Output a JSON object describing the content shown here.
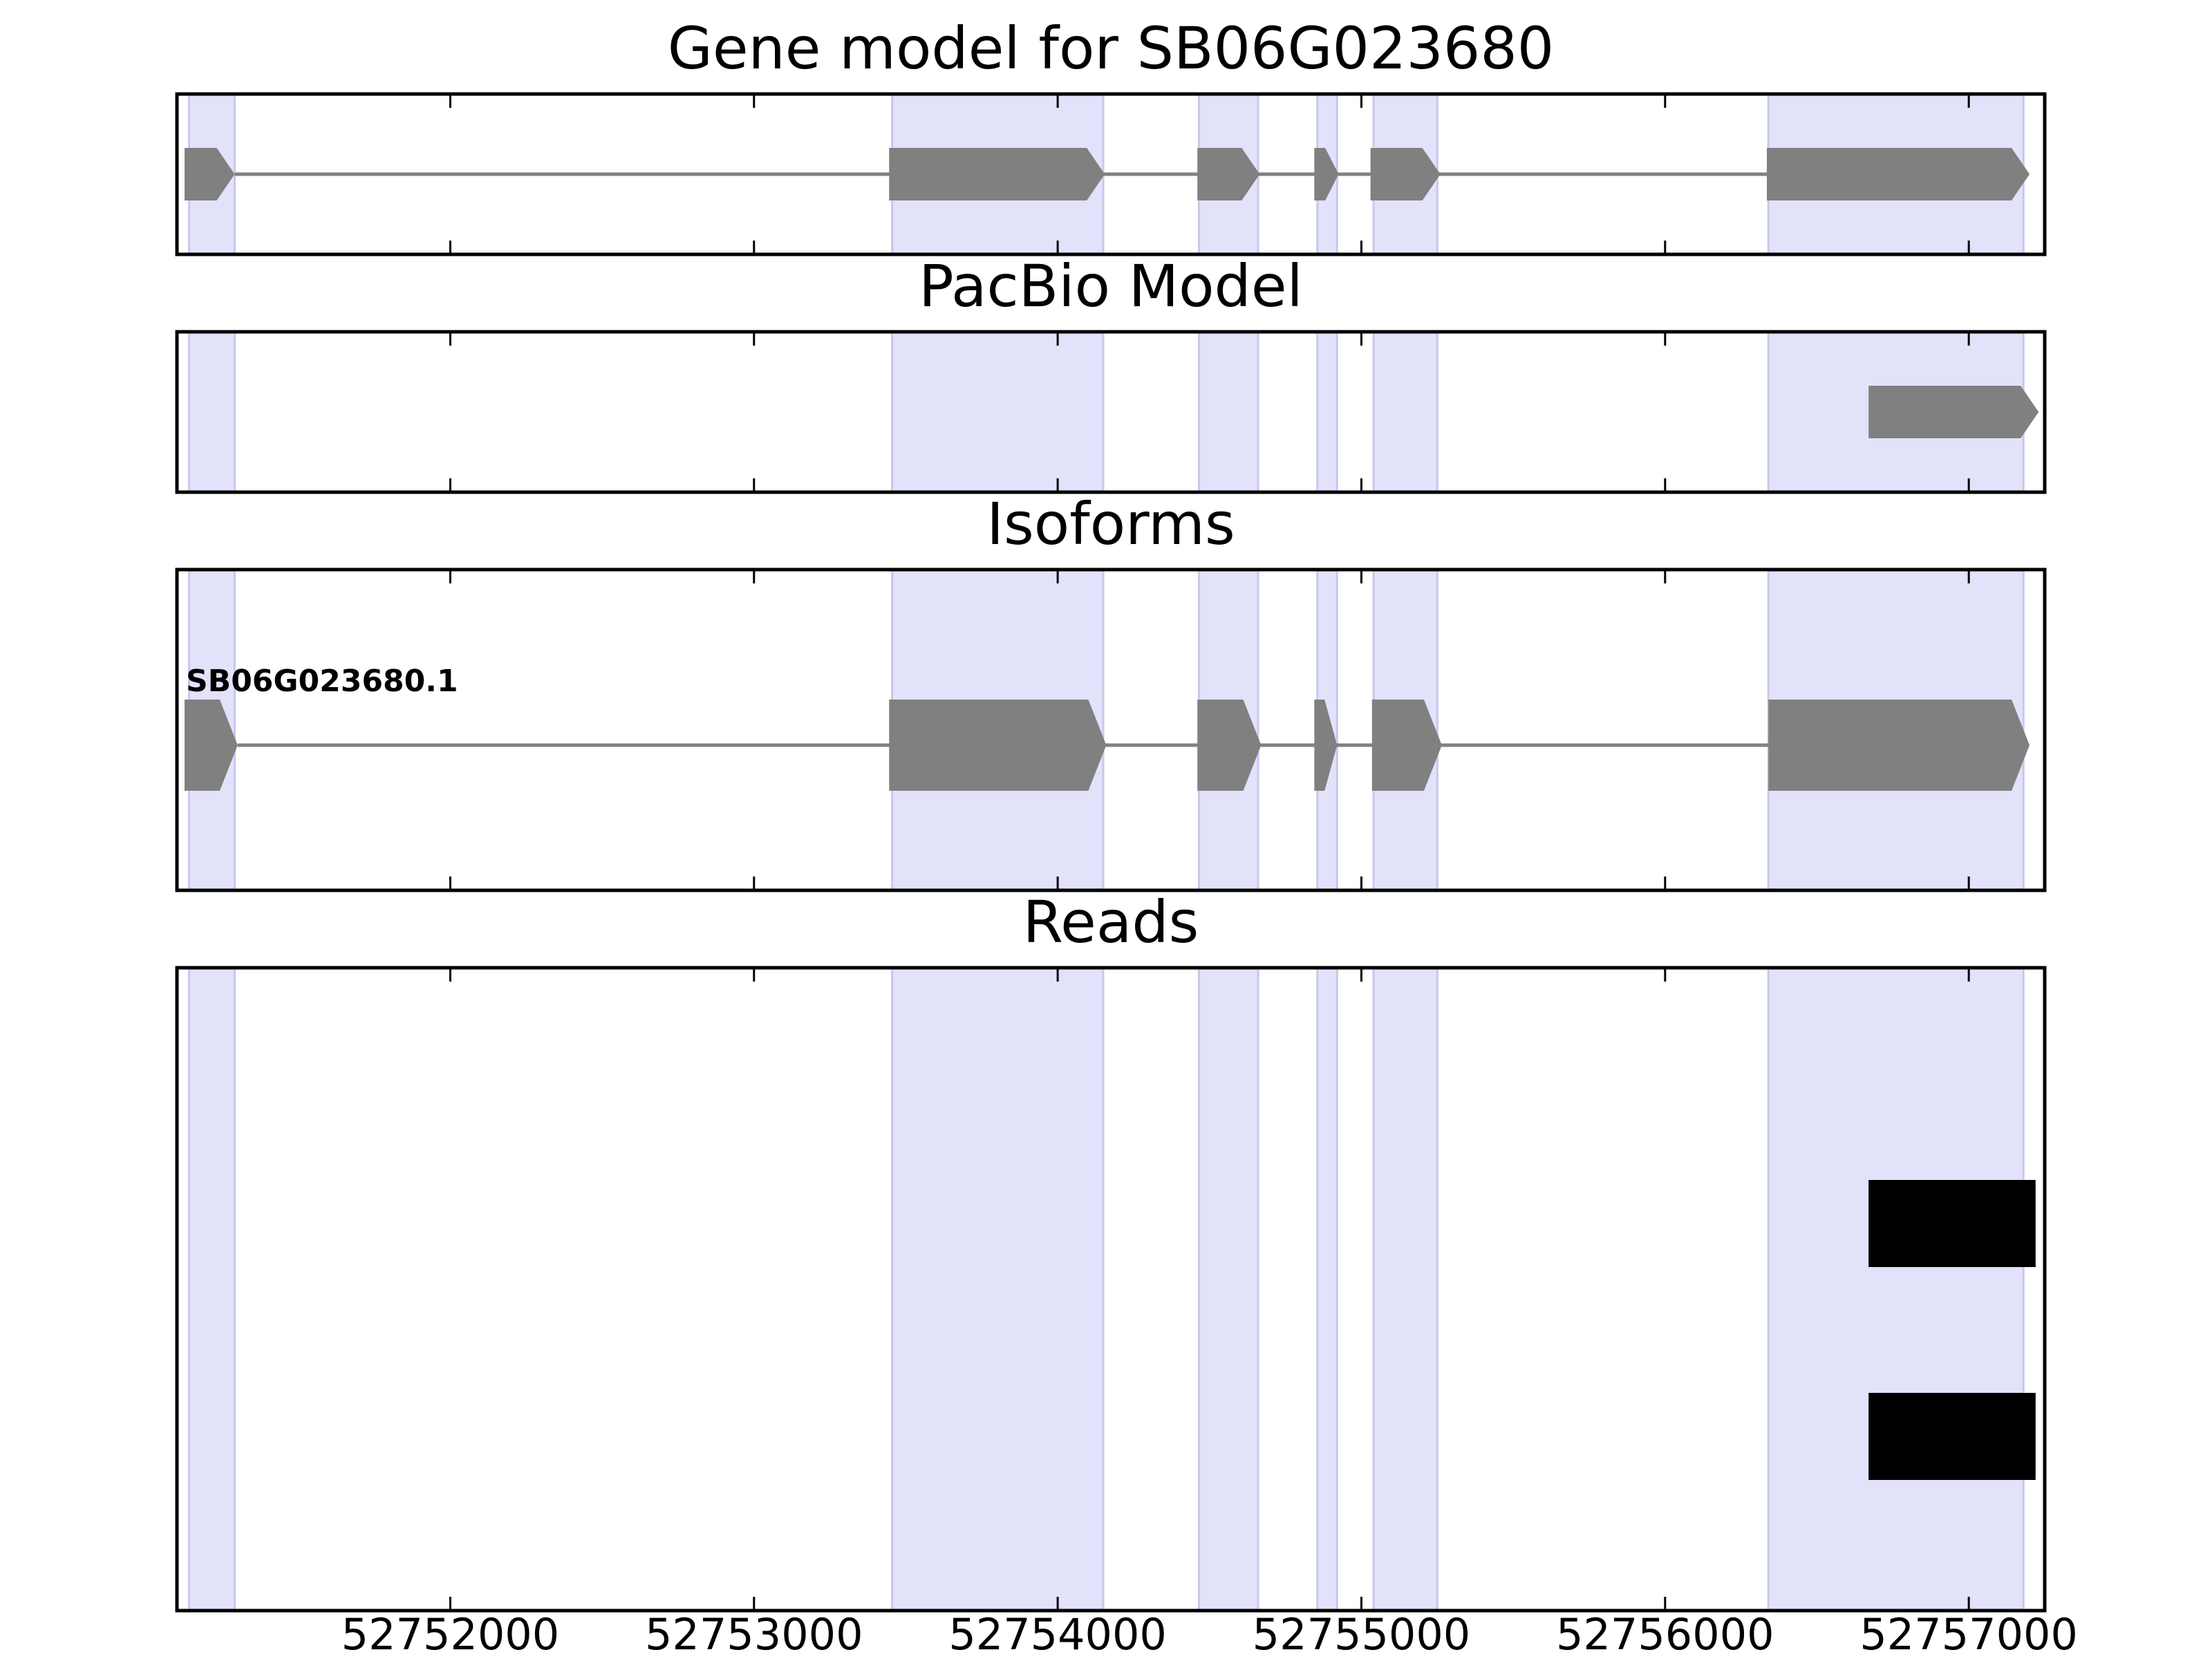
{
  "chart_data": [
    {
      "type": "gene_track",
      "title": "Gene model for SB06G023680",
      "xlim": [
        52751100,
        52757250
      ],
      "exons": [
        [
          52751125,
          52751290
        ],
        [
          52753445,
          52754155
        ],
        [
          52754460,
          52754665
        ],
        [
          52754845,
          52754925
        ],
        [
          52755030,
          52755260
        ],
        [
          52756335,
          52757200
        ]
      ],
      "intron_line": [
        52751290,
        52756335
      ]
    },
    {
      "type": "gene_track",
      "title": "PacBio Model",
      "xlim": [
        52751100,
        52757250
      ],
      "exons": [
        [
          52756670,
          52757230
        ]
      ]
    },
    {
      "type": "gene_track",
      "title": "Isoforms",
      "xlim": [
        52751100,
        52757250
      ],
      "isoforms": [
        {
          "name": "SB06G023680.1",
          "exons": [
            [
              52751125,
              52751300
            ],
            [
              52753445,
              52754160
            ],
            [
              52754460,
              52754670
            ],
            [
              52754845,
              52754920
            ],
            [
              52755035,
              52755265
            ],
            [
              52756340,
              52757200
            ]
          ]
        }
      ]
    },
    {
      "type": "gene_track",
      "title": "Reads",
      "xlim": [
        52751100,
        52757250
      ],
      "xticks": [
        52752000,
        52753000,
        52754000,
        52755000,
        52756000,
        52757000
      ],
      "xtick_labels": [
        "52752000",
        "52753000",
        "52754000",
        "52755000",
        "52756000",
        "52757000"
      ],
      "reads": [
        {
          "start": 52756670,
          "end": 52757220,
          "row": 1
        },
        {
          "start": 52756670,
          "end": 52757220,
          "row": 2
        }
      ]
    }
  ],
  "shaded_regions": [
    [
      52751140,
      52751290
    ],
    [
      52753455,
      52754150
    ],
    [
      52754465,
      52754660
    ],
    [
      52754855,
      52754920
    ],
    [
      52755040,
      52755250
    ],
    [
      52756340,
      52757180
    ]
  ],
  "colors": {
    "exon": "#808080",
    "intron": "#808080",
    "read": "#000000",
    "shade": "#e2e2fb",
    "shade_edge": "#c8c8ec",
    "axis": "#000000"
  }
}
